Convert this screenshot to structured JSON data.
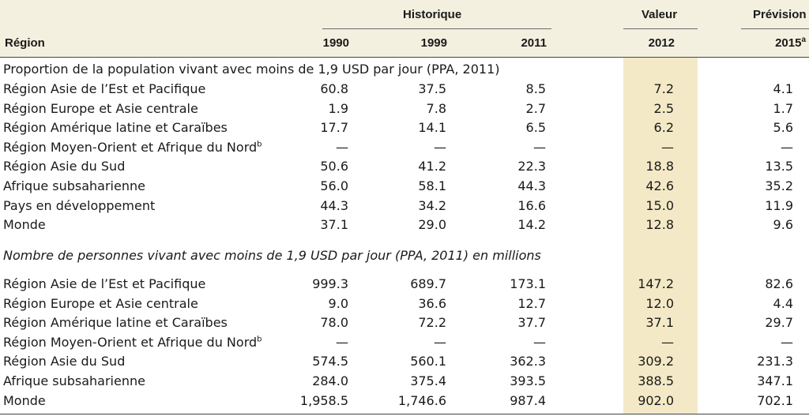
{
  "header": {
    "group_historique": "Historique",
    "group_valeur": "Valeur",
    "group_prevision": "Prévision",
    "col_region": "Région",
    "col_1990": "1990",
    "col_1999": "1999",
    "col_2011": "2011",
    "col_2012": "2012",
    "col_2015": "2015",
    "col_2015_note": "a"
  },
  "section1": {
    "title": "Proportion de la population vivant avec moins de 1,9 USD par jour (PPA, 2011)",
    "rows": [
      {
        "label": "Région Asie de l’Est et Pacifique",
        "note": "",
        "v1990": "60.8",
        "v1999": "37.5",
        "v2011": "8.5",
        "v2012": "7.2",
        "v2015": "4.1"
      },
      {
        "label": "Région Europe et Asie centrale",
        "note": "",
        "v1990": "1.9",
        "v1999": "7.8",
        "v2011": "2.7",
        "v2012": "2.5",
        "v2015": "1.7"
      },
      {
        "label": "Région Amérique latine et Caraïbes",
        "note": "",
        "v1990": "17.7",
        "v1999": "14.1",
        "v2011": "6.5",
        "v2012": "6.2",
        "v2015": "5.6"
      },
      {
        "label": "Région Moyen-Orient et Afrique du Nord",
        "note": "b",
        "v1990": "—",
        "v1999": "—",
        "v2011": "—",
        "v2012": "—",
        "v2015": "—"
      },
      {
        "label": "Région Asie du Sud",
        "note": "",
        "v1990": "50.6",
        "v1999": "41.2",
        "v2011": "22.3",
        "v2012": "18.8",
        "v2015": "13.5"
      },
      {
        "label": "Afrique subsaharienne",
        "note": "",
        "v1990": "56.0",
        "v1999": "58.1",
        "v2011": "44.3",
        "v2012": "42.6",
        "v2015": "35.2"
      },
      {
        "label": "Pays en développement",
        "note": "",
        "v1990": "44.3",
        "v1999": "34.2",
        "v2011": "16.6",
        "v2012": "15.0",
        "v2015": "11.9"
      },
      {
        "label": "Monde",
        "note": "",
        "v1990": "37.1",
        "v1999": "29.0",
        "v2011": "14.2",
        "v2012": "12.8",
        "v2015": "9.6"
      }
    ]
  },
  "section2": {
    "title": "Nombre de personnes vivant avec moins de 1,9 USD par jour (PPA, 2011) en millions",
    "rows": [
      {
        "label": "Région Asie de l’Est et Pacifique",
        "note": "",
        "v1990": "999.3",
        "v1999": "689.7",
        "v2011": "173.1",
        "v2012": "147.2",
        "v2015": "82.6"
      },
      {
        "label": "Région Europe et Asie centrale",
        "note": "",
        "v1990": "9.0",
        "v1999": "36.6",
        "v2011": "12.7",
        "v2012": "12.0",
        "v2015": "4.4"
      },
      {
        "label": "Région Amérique latine et Caraïbes",
        "note": "",
        "v1990": "78.0",
        "v1999": "72.2",
        "v2011": "37.7",
        "v2012": "37.1",
        "v2015": "29.7"
      },
      {
        "label": "Région Moyen-Orient et Afrique du Nord",
        "note": "b",
        "v1990": "—",
        "v1999": "—",
        "v2011": "—",
        "v2012": "—",
        "v2015": "—"
      },
      {
        "label": "Région Asie du Sud",
        "note": "",
        "v1990": "574.5",
        "v1999": "560.1",
        "v2011": "362.3",
        "v2012": "309.2",
        "v2015": "231.3"
      },
      {
        "label": "Afrique subsaharienne",
        "note": "",
        "v1990": "284.0",
        "v1999": "375.4",
        "v2011": "393.5",
        "v2012": "388.5",
        "v2015": "347.1"
      },
      {
        "label": "Monde",
        "note": "",
        "v1990": "1,958.5",
        "v1999": "1,746.6",
        "v2011": "987.4",
        "v2012": "902.0",
        "v2015": "702.1"
      }
    ]
  },
  "colors": {
    "header_bg": "#f4f0e0",
    "highlight_col": "#f3e9c6"
  }
}
